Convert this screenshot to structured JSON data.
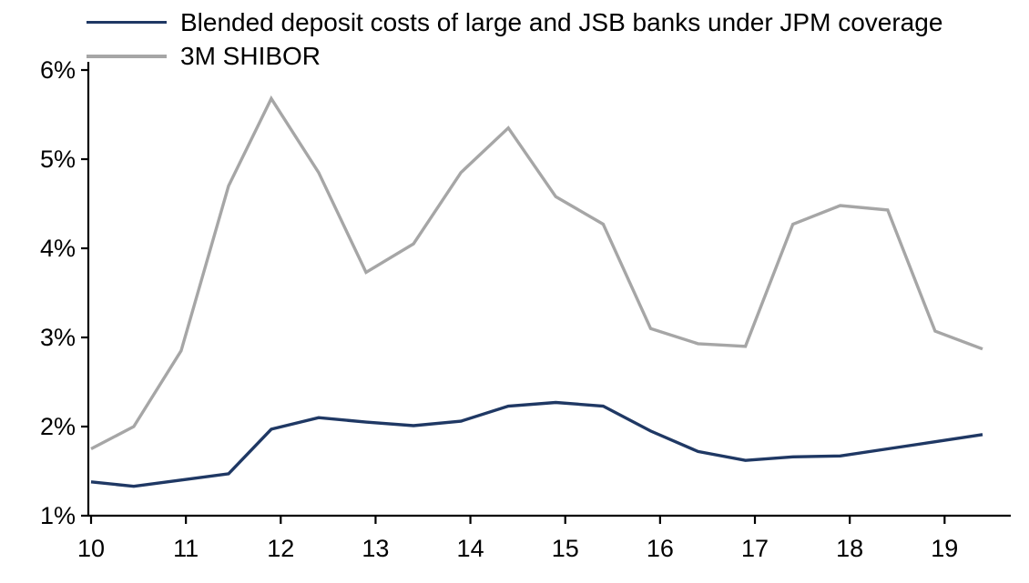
{
  "chart_data": {
    "type": "line",
    "title": "",
    "xlabel": "",
    "ylabel": "",
    "x": [
      10.0,
      10.45,
      10.95,
      11.45,
      11.9,
      12.4,
      12.9,
      13.4,
      13.9,
      14.4,
      14.9,
      15.4,
      15.9,
      16.4,
      16.9,
      17.4,
      17.9,
      18.4,
      18.9,
      19.4
    ],
    "series": [
      {
        "name": "Blended deposit costs of large and JSB banks under JPM coverage",
        "color": "#1F3864",
        "values": [
          1.38,
          1.33,
          1.4,
          1.47,
          1.97,
          2.1,
          2.05,
          2.01,
          2.06,
          2.23,
          2.27,
          2.23,
          1.95,
          1.72,
          1.62,
          1.66,
          1.67,
          1.75,
          1.83,
          1.91
        ]
      },
      {
        "name": "3M SHIBOR",
        "color": "#A6A6A6",
        "values": [
          1.75,
          2.0,
          2.85,
          4.7,
          5.68,
          4.85,
          3.73,
          4.05,
          4.85,
          5.35,
          4.58,
          4.27,
          3.1,
          2.93,
          2.9,
          4.27,
          4.48,
          4.43,
          3.07,
          2.87
        ]
      }
    ],
    "x_ticks": [
      10,
      11,
      12,
      13,
      14,
      15,
      16,
      17,
      18,
      19
    ],
    "y_ticks": [
      1,
      2,
      3,
      4,
      5,
      6
    ],
    "y_tick_suffix": "%",
    "xlim": [
      10,
      19.65
    ],
    "ylim": [
      1,
      6
    ],
    "grid": false,
    "legend_position": "top-left",
    "axis_color": "#000000"
  }
}
